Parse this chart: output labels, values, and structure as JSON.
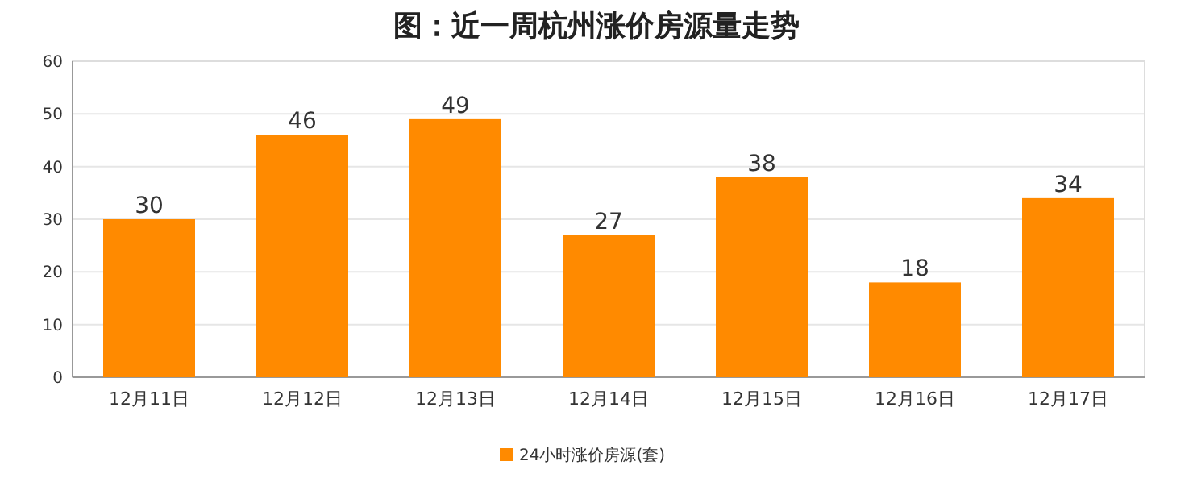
{
  "chart_data": {
    "type": "bar",
    "title": "图：近一周杭州涨价房源量走势",
    "categories": [
      "12月11日",
      "12月12日",
      "12月13日",
      "12月14日",
      "12月15日",
      "12月16日",
      "12月17日"
    ],
    "series": [
      {
        "name": "24小时涨价房源(套)",
        "color": "#ff8a00",
        "values": [
          30,
          46,
          49,
          27,
          38,
          18,
          34
        ]
      }
    ],
    "ylim": [
      0,
      60
    ],
    "yticks": [
      0,
      10,
      20,
      30,
      40,
      50,
      60
    ],
    "grid": "y",
    "data_labels": true,
    "legend": "bottom"
  }
}
